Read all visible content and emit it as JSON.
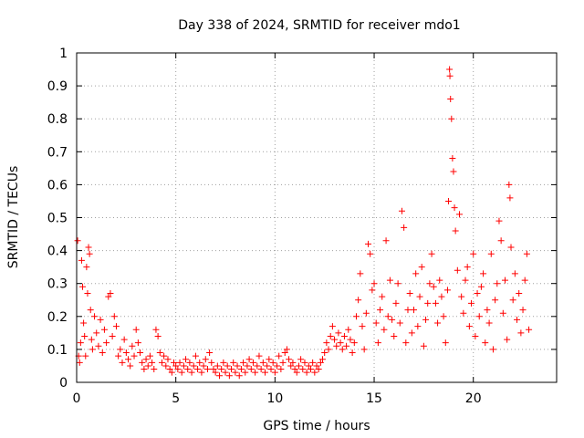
{
  "chart_data": {
    "type": "scatter",
    "title": "Day 338 of 2024, SRMTID for receiver mdo1",
    "xlabel": "GPS time / hours",
    "ylabel": "SRMTID / TECUs",
    "xlim": [
      0,
      24.2
    ],
    "ylim": [
      0,
      1
    ],
    "xticks": [
      0,
      5,
      10,
      15,
      20
    ],
    "xtick_labels": [
      "0",
      "5",
      "10",
      "15",
      "20"
    ],
    "yticks": [
      0,
      0.1,
      0.2,
      0.3,
      0.4,
      0.5,
      0.6,
      0.7,
      0.8,
      0.9,
      1
    ],
    "ytick_labels": [
      "0",
      "0.1",
      "0.2",
      "0.3",
      "0.4",
      "0.5",
      "0.6",
      "0.7",
      "0.8",
      "0.9",
      "1"
    ],
    "grid": true,
    "marker": "plus",
    "color": "#ff0000",
    "series": [
      {
        "name": "mdo1",
        "points": [
          [
            0.05,
            0.43
          ],
          [
            0.1,
            0.08
          ],
          [
            0.15,
            0.06
          ],
          [
            0.2,
            0.12
          ],
          [
            0.25,
            0.37
          ],
          [
            0.3,
            0.29
          ],
          [
            0.35,
            0.18
          ],
          [
            0.4,
            0.14
          ],
          [
            0.45,
            0.08
          ],
          [
            0.5,
            0.35
          ],
          [
            0.55,
            0.27
          ],
          [
            0.6,
            0.41
          ],
          [
            0.65,
            0.39
          ],
          [
            0.7,
            0.22
          ],
          [
            0.75,
            0.13
          ],
          [
            0.8,
            0.1
          ],
          [
            0.9,
            0.2
          ],
          [
            1.0,
            0.15
          ],
          [
            1.1,
            0.11
          ],
          [
            1.2,
            0.19
          ],
          [
            1.3,
            0.09
          ],
          [
            1.4,
            0.16
          ],
          [
            1.5,
            0.12
          ],
          [
            1.6,
            0.26
          ],
          [
            1.7,
            0.27
          ],
          [
            1.8,
            0.14
          ],
          [
            1.9,
            0.2
          ],
          [
            2.0,
            0.17
          ],
          [
            2.1,
            0.08
          ],
          [
            2.2,
            0.1
          ],
          [
            2.3,
            0.06
          ],
          [
            2.4,
            0.13
          ],
          [
            2.5,
            0.09
          ],
          [
            2.6,
            0.07
          ],
          [
            2.7,
            0.05
          ],
          [
            2.8,
            0.11
          ],
          [
            2.9,
            0.08
          ],
          [
            3.0,
            0.16
          ],
          [
            3.1,
            0.12
          ],
          [
            3.2,
            0.09
          ],
          [
            3.3,
            0.06
          ],
          [
            3.4,
            0.04
          ],
          [
            3.5,
            0.07
          ],
          [
            3.6,
            0.05
          ],
          [
            3.7,
            0.08
          ],
          [
            3.8,
            0.06
          ],
          [
            3.9,
            0.04
          ],
          [
            4.0,
            0.16
          ],
          [
            4.1,
            0.14
          ],
          [
            4.2,
            0.09
          ],
          [
            4.3,
            0.06
          ],
          [
            4.4,
            0.08
          ],
          [
            4.5,
            0.05
          ],
          [
            4.6,
            0.07
          ],
          [
            4.7,
            0.04
          ],
          [
            4.8,
            0.03
          ],
          [
            4.9,
            0.06
          ],
          [
            5.0,
            0.05
          ],
          [
            5.1,
            0.04
          ],
          [
            5.2,
            0.06
          ],
          [
            5.3,
            0.03
          ],
          [
            5.4,
            0.05
          ],
          [
            5.5,
            0.07
          ],
          [
            5.6,
            0.04
          ],
          [
            5.7,
            0.06
          ],
          [
            5.8,
            0.03
          ],
          [
            5.9,
            0.05
          ],
          [
            6.0,
            0.08
          ],
          [
            6.1,
            0.04
          ],
          [
            6.2,
            0.06
          ],
          [
            6.3,
            0.03
          ],
          [
            6.4,
            0.05
          ],
          [
            6.5,
            0.07
          ],
          [
            6.6,
            0.04
          ],
          [
            6.7,
            0.09
          ],
          [
            6.8,
            0.06
          ],
          [
            6.9,
            0.04
          ],
          [
            7.0,
            0.03
          ],
          [
            7.1,
            0.05
          ],
          [
            7.2,
            0.02
          ],
          [
            7.3,
            0.04
          ],
          [
            7.4,
            0.06
          ],
          [
            7.5,
            0.03
          ],
          [
            7.6,
            0.05
          ],
          [
            7.7,
            0.02
          ],
          [
            7.8,
            0.04
          ],
          [
            7.9,
            0.06
          ],
          [
            8.0,
            0.03
          ],
          [
            8.1,
            0.05
          ],
          [
            8.2,
            0.02
          ],
          [
            8.3,
            0.04
          ],
          [
            8.4,
            0.06
          ],
          [
            8.5,
            0.03
          ],
          [
            8.6,
            0.05
          ],
          [
            8.7,
            0.07
          ],
          [
            8.8,
            0.04
          ],
          [
            8.9,
            0.06
          ],
          [
            9.0,
            0.03
          ],
          [
            9.1,
            0.05
          ],
          [
            9.2,
            0.08
          ],
          [
            9.3,
            0.04
          ],
          [
            9.4,
            0.06
          ],
          [
            9.5,
            0.03
          ],
          [
            9.6,
            0.05
          ],
          [
            9.7,
            0.07
          ],
          [
            9.8,
            0.04
          ],
          [
            9.9,
            0.06
          ],
          [
            10.0,
            0.03
          ],
          [
            10.1,
            0.05
          ],
          [
            10.2,
            0.08
          ],
          [
            10.3,
            0.04
          ],
          [
            10.4,
            0.06
          ],
          [
            10.5,
            0.09
          ],
          [
            10.6,
            0.1
          ],
          [
            10.7,
            0.07
          ],
          [
            10.8,
            0.05
          ],
          [
            10.9,
            0.06
          ],
          [
            11.0,
            0.04
          ],
          [
            11.1,
            0.03
          ],
          [
            11.2,
            0.05
          ],
          [
            11.3,
            0.07
          ],
          [
            11.4,
            0.04
          ],
          [
            11.5,
            0.06
          ],
          [
            11.6,
            0.03
          ],
          [
            11.7,
            0.05
          ],
          [
            11.8,
            0.04
          ],
          [
            11.9,
            0.06
          ],
          [
            12.0,
            0.03
          ],
          [
            12.1,
            0.05
          ],
          [
            12.2,
            0.04
          ],
          [
            12.3,
            0.06
          ],
          [
            12.4,
            0.07
          ],
          [
            12.5,
            0.09
          ],
          [
            12.6,
            0.12
          ],
          [
            12.7,
            0.1
          ],
          [
            12.8,
            0.14
          ],
          [
            12.9,
            0.17
          ],
          [
            13.0,
            0.13
          ],
          [
            13.1,
            0.11
          ],
          [
            13.2,
            0.15
          ],
          [
            13.3,
            0.12
          ],
          [
            13.4,
            0.1
          ],
          [
            13.5,
            0.14
          ],
          [
            13.6,
            0.11
          ],
          [
            13.7,
            0.16
          ],
          [
            13.8,
            0.13
          ],
          [
            13.9,
            0.09
          ],
          [
            14.0,
            0.12
          ],
          [
            14.1,
            0.2
          ],
          [
            14.2,
            0.25
          ],
          [
            14.3,
            0.33
          ],
          [
            14.4,
            0.17
          ],
          [
            14.5,
            0.1
          ],
          [
            14.6,
            0.21
          ],
          [
            14.7,
            0.42
          ],
          [
            14.8,
            0.39
          ],
          [
            14.9,
            0.28
          ],
          [
            15.0,
            0.3
          ],
          [
            15.1,
            0.18
          ],
          [
            15.2,
            0.12
          ],
          [
            15.3,
            0.22
          ],
          [
            15.4,
            0.26
          ],
          [
            15.5,
            0.16
          ],
          [
            15.6,
            0.43
          ],
          [
            15.7,
            0.2
          ],
          [
            15.8,
            0.31
          ],
          [
            15.9,
            0.19
          ],
          [
            16.0,
            0.14
          ],
          [
            16.1,
            0.24
          ],
          [
            16.2,
            0.3
          ],
          [
            16.3,
            0.18
          ],
          [
            16.4,
            0.52
          ],
          [
            16.5,
            0.47
          ],
          [
            16.6,
            0.12
          ],
          [
            16.7,
            0.22
          ],
          [
            16.8,
            0.27
          ],
          [
            16.9,
            0.15
          ],
          [
            17.0,
            0.22
          ],
          [
            17.1,
            0.33
          ],
          [
            17.2,
            0.17
          ],
          [
            17.3,
            0.26
          ],
          [
            17.4,
            0.35
          ],
          [
            17.5,
            0.11
          ],
          [
            17.6,
            0.19
          ],
          [
            17.7,
            0.24
          ],
          [
            17.8,
            0.3
          ],
          [
            17.9,
            0.39
          ],
          [
            18.0,
            0.29
          ],
          [
            18.1,
            0.24
          ],
          [
            18.2,
            0.18
          ],
          [
            18.3,
            0.31
          ],
          [
            18.4,
            0.26
          ],
          [
            18.5,
            0.2
          ],
          [
            18.6,
            0.12
          ],
          [
            18.7,
            0.28
          ],
          [
            18.75,
            0.55
          ],
          [
            18.8,
            0.95
          ],
          [
            18.82,
            0.93
          ],
          [
            18.85,
            0.86
          ],
          [
            18.9,
            0.8
          ],
          [
            18.95,
            0.68
          ],
          [
            19.0,
            0.64
          ],
          [
            19.05,
            0.53
          ],
          [
            19.1,
            0.46
          ],
          [
            19.2,
            0.34
          ],
          [
            19.3,
            0.51
          ],
          [
            19.4,
            0.26
          ],
          [
            19.5,
            0.21
          ],
          [
            19.6,
            0.31
          ],
          [
            19.7,
            0.35
          ],
          [
            19.8,
            0.17
          ],
          [
            19.9,
            0.24
          ],
          [
            20.0,
            0.39
          ],
          [
            20.1,
            0.14
          ],
          [
            20.2,
            0.27
          ],
          [
            20.3,
            0.2
          ],
          [
            20.4,
            0.29
          ],
          [
            20.5,
            0.33
          ],
          [
            20.6,
            0.12
          ],
          [
            20.7,
            0.22
          ],
          [
            20.8,
            0.18
          ],
          [
            20.9,
            0.39
          ],
          [
            21.0,
            0.1
          ],
          [
            21.1,
            0.25
          ],
          [
            21.2,
            0.3
          ],
          [
            21.3,
            0.49
          ],
          [
            21.4,
            0.43
          ],
          [
            21.5,
            0.21
          ],
          [
            21.6,
            0.31
          ],
          [
            21.7,
            0.13
          ],
          [
            21.8,
            0.6
          ],
          [
            21.85,
            0.56
          ],
          [
            21.9,
            0.41
          ],
          [
            22.0,
            0.25
          ],
          [
            22.1,
            0.33
          ],
          [
            22.2,
            0.19
          ],
          [
            22.3,
            0.27
          ],
          [
            22.4,
            0.15
          ],
          [
            22.5,
            0.22
          ],
          [
            22.6,
            0.31
          ],
          [
            22.7,
            0.39
          ],
          [
            22.8,
            0.16
          ]
        ]
      }
    ]
  }
}
